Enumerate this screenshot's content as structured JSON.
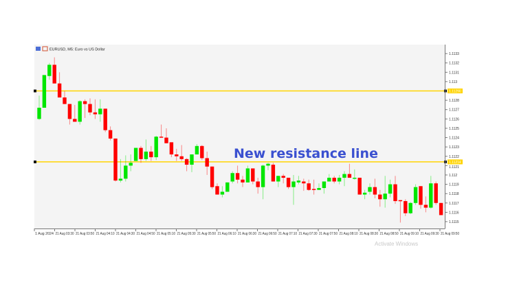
{
  "header": {
    "title": "EURUSD, M5:  Euro vs US Dollar"
  },
  "annotation": "New resistance line",
  "watermark": "Activate Windows",
  "colors": {
    "bull": "#00e600",
    "bear": "#ff0000",
    "level": "#ffd400",
    "annotation": "#3a50d0",
    "background": "#f4f4f4"
  },
  "chart_data": {
    "type": "candlestick",
    "symbol": "EURUSD",
    "timeframe": "M5",
    "ylim": [
      1.11145,
      1.11338
    ],
    "yticks": [
      1.1115,
      1.1116,
      1.1117,
      1.1118,
      1.1119,
      1.112,
      1.1121,
      1.1122,
      1.1123,
      1.1124,
      1.1125,
      1.1126,
      1.1127,
      1.1128,
      1.113,
      1.1131,
      1.1132,
      1.1133
    ],
    "xtick_labels": [
      "1 Aug 2024",
      "21 Aug 03:30",
      "21 Aug 03:50",
      "21 Aug 04:10",
      "21 Aug 04:30",
      "21 Aug 04:50",
      "21 Aug 05:10",
      "21 Aug 05:30",
      "21 Aug 05:50",
      "21 Aug 06:10",
      "21 Aug 06:30",
      "21 Aug 06:50",
      "21 Aug 07:10",
      "21 Aug 07:30",
      "21 Aug 07:50",
      "21 Aug 08:10",
      "21 Aug 08:30",
      "21 Aug 08:50",
      "21 Aug 09:10",
      "21 Aug 09:30",
      "21 Aug 09:50"
    ],
    "horizontal_lines": [
      {
        "price": 1.1129,
        "label": "1.11290"
      },
      {
        "price": 1.11214,
        "label": "1.11214"
      }
    ],
    "ohlc_columns": [
      "open",
      "high",
      "low",
      "close"
    ],
    "candles": [
      [
        1.1126,
        1.11285,
        1.11259,
        1.11272
      ],
      [
        1.11272,
        1.11307,
        1.11272,
        1.11307
      ],
      [
        1.11306,
        1.1132,
        1.11302,
        1.11318
      ],
      [
        1.11318,
        1.11326,
        1.11298,
        1.11298
      ],
      [
        1.11298,
        1.1131,
        1.11283,
        1.11283
      ],
      [
        1.11283,
        1.1129,
        1.11276,
        1.11276
      ],
      [
        1.11276,
        1.11276,
        1.11254,
        1.1126
      ],
      [
        1.1126,
        1.11275,
        1.11257,
        1.11257
      ],
      [
        1.11257,
        1.1128,
        1.11254,
        1.11279
      ],
      [
        1.11279,
        1.11281,
        1.11261,
        1.11276
      ],
      [
        1.11276,
        1.11282,
        1.11264,
        1.11267
      ],
      [
        1.11267,
        1.11281,
        1.1126,
        1.11265
      ],
      [
        1.11265,
        1.11281,
        1.11257,
        1.11271
      ],
      [
        1.11271,
        1.11271,
        1.11246,
        1.11248
      ],
      [
        1.11248,
        1.11252,
        1.11237,
        1.11239
      ],
      [
        1.11239,
        1.11239,
        1.11193,
        1.11194
      ],
      [
        1.11194,
        1.11217,
        1.11192,
        1.11196
      ],
      [
        1.11196,
        1.11221,
        1.11193,
        1.1121
      ],
      [
        1.1121,
        1.11222,
        1.11204,
        1.11213
      ],
      [
        1.11215,
        1.11229,
        1.11215,
        1.11229
      ],
      [
        1.11229,
        1.11231,
        1.11213,
        1.11217
      ],
      [
        1.11217,
        1.11238,
        1.11215,
        1.11225
      ],
      [
        1.11225,
        1.11231,
        1.11215,
        1.11219
      ],
      [
        1.11219,
        1.11242,
        1.11216,
        1.11241
      ],
      [
        1.11241,
        1.11254,
        1.1124,
        1.1124
      ],
      [
        1.1124,
        1.1125,
        1.11234,
        1.11234
      ],
      [
        1.11235,
        1.11235,
        1.11219,
        1.11222
      ],
      [
        1.11222,
        1.11228,
        1.11215,
        1.1122
      ],
      [
        1.1122,
        1.11232,
        1.11215,
        1.11217
      ],
      [
        1.11217,
        1.11218,
        1.11204,
        1.11211
      ],
      [
        1.11211,
        1.11222,
        1.11203,
        1.11222
      ],
      [
        1.11222,
        1.11233,
        1.11222,
        1.11231
      ],
      [
        1.11231,
        1.11232,
        1.11216,
        1.11218
      ],
      [
        1.11218,
        1.11225,
        1.112,
        1.11209
      ],
      [
        1.11209,
        1.11209,
        1.11185,
        1.11187
      ],
      [
        1.11188,
        1.11191,
        1.11179,
        1.11179
      ],
      [
        1.11179,
        1.11188,
        1.11176,
        1.11182
      ],
      [
        1.11182,
        1.11192,
        1.11182,
        1.11192
      ],
      [
        1.11193,
        1.11204,
        1.11191,
        1.11202
      ],
      [
        1.11202,
        1.1121,
        1.11191,
        1.11195
      ],
      [
        1.11195,
        1.11199,
        1.11187,
        1.11192
      ],
      [
        1.11192,
        1.1121,
        1.11192,
        1.11207
      ],
      [
        1.11207,
        1.11207,
        1.1119,
        1.11193
      ],
      [
        1.11193,
        1.11197,
        1.1118,
        1.11187
      ],
      [
        1.11187,
        1.11211,
        1.11174,
        1.1121
      ],
      [
        1.1121,
        1.11213,
        1.11205,
        1.11212
      ],
      [
        1.11211,
        1.11213,
        1.11193,
        1.11193
      ],
      [
        1.11193,
        1.11199,
        1.11187,
        1.11199
      ],
      [
        1.11199,
        1.11201,
        1.11191,
        1.11197
      ],
      [
        1.11197,
        1.11197,
        1.11185,
        1.11187
      ],
      [
        1.11187,
        1.112,
        1.11168,
        1.11193
      ],
      [
        1.11192,
        1.11199,
        1.1119,
        1.11194
      ],
      [
        1.11193,
        1.11196,
        1.11183,
        1.11191
      ],
      [
        1.11191,
        1.11195,
        1.11183,
        1.11184
      ],
      [
        1.11185,
        1.11195,
        1.11179,
        1.11184
      ],
      [
        1.11184,
        1.11191,
        1.11184,
        1.11186
      ],
      [
        1.11186,
        1.11193,
        1.1118,
        1.11193
      ],
      [
        1.11193,
        1.11201,
        1.11193,
        1.11197
      ],
      [
        1.11197,
        1.11199,
        1.11191,
        1.11193
      ],
      [
        1.11193,
        1.112,
        1.1119,
        1.11197
      ],
      [
        1.11197,
        1.11204,
        1.11188,
        1.11201
      ],
      [
        1.11201,
        1.11212,
        1.11197,
        1.11197
      ],
      [
        1.11196,
        1.11206,
        1.11195,
        1.11197
      ],
      [
        1.11197,
        1.11197,
        1.11179,
        1.11179
      ],
      [
        1.11179,
        1.11184,
        1.11174,
        1.11181
      ],
      [
        1.11182,
        1.11191,
        1.11179,
        1.11187
      ],
      [
        1.11187,
        1.11196,
        1.11175,
        1.11179
      ],
      [
        1.11179,
        1.11184,
        1.11166,
        1.11174
      ],
      [
        1.11174,
        1.11199,
        1.11165,
        1.1118
      ],
      [
        1.1118,
        1.11195,
        1.11176,
        1.1119
      ],
      [
        1.1119,
        1.11199,
        1.11169,
        1.11172
      ],
      [
        1.11173,
        1.11173,
        1.11149,
        1.11172
      ],
      [
        1.11172,
        1.11174,
        1.11156,
        1.11159
      ],
      [
        1.11159,
        1.11171,
        1.11158,
        1.1117
      ],
      [
        1.1117,
        1.1119,
        1.11168,
        1.11187
      ],
      [
        1.11188,
        1.11188,
        1.11164,
        1.11168
      ],
      [
        1.11168,
        1.11177,
        1.1116,
        1.11165
      ],
      [
        1.11165,
        1.11199,
        1.11164,
        1.11191
      ],
      [
        1.11191,
        1.11193,
        1.11168,
        1.1117
      ],
      [
        1.1117,
        1.1117,
        1.11157,
        1.11157
      ]
    ]
  }
}
